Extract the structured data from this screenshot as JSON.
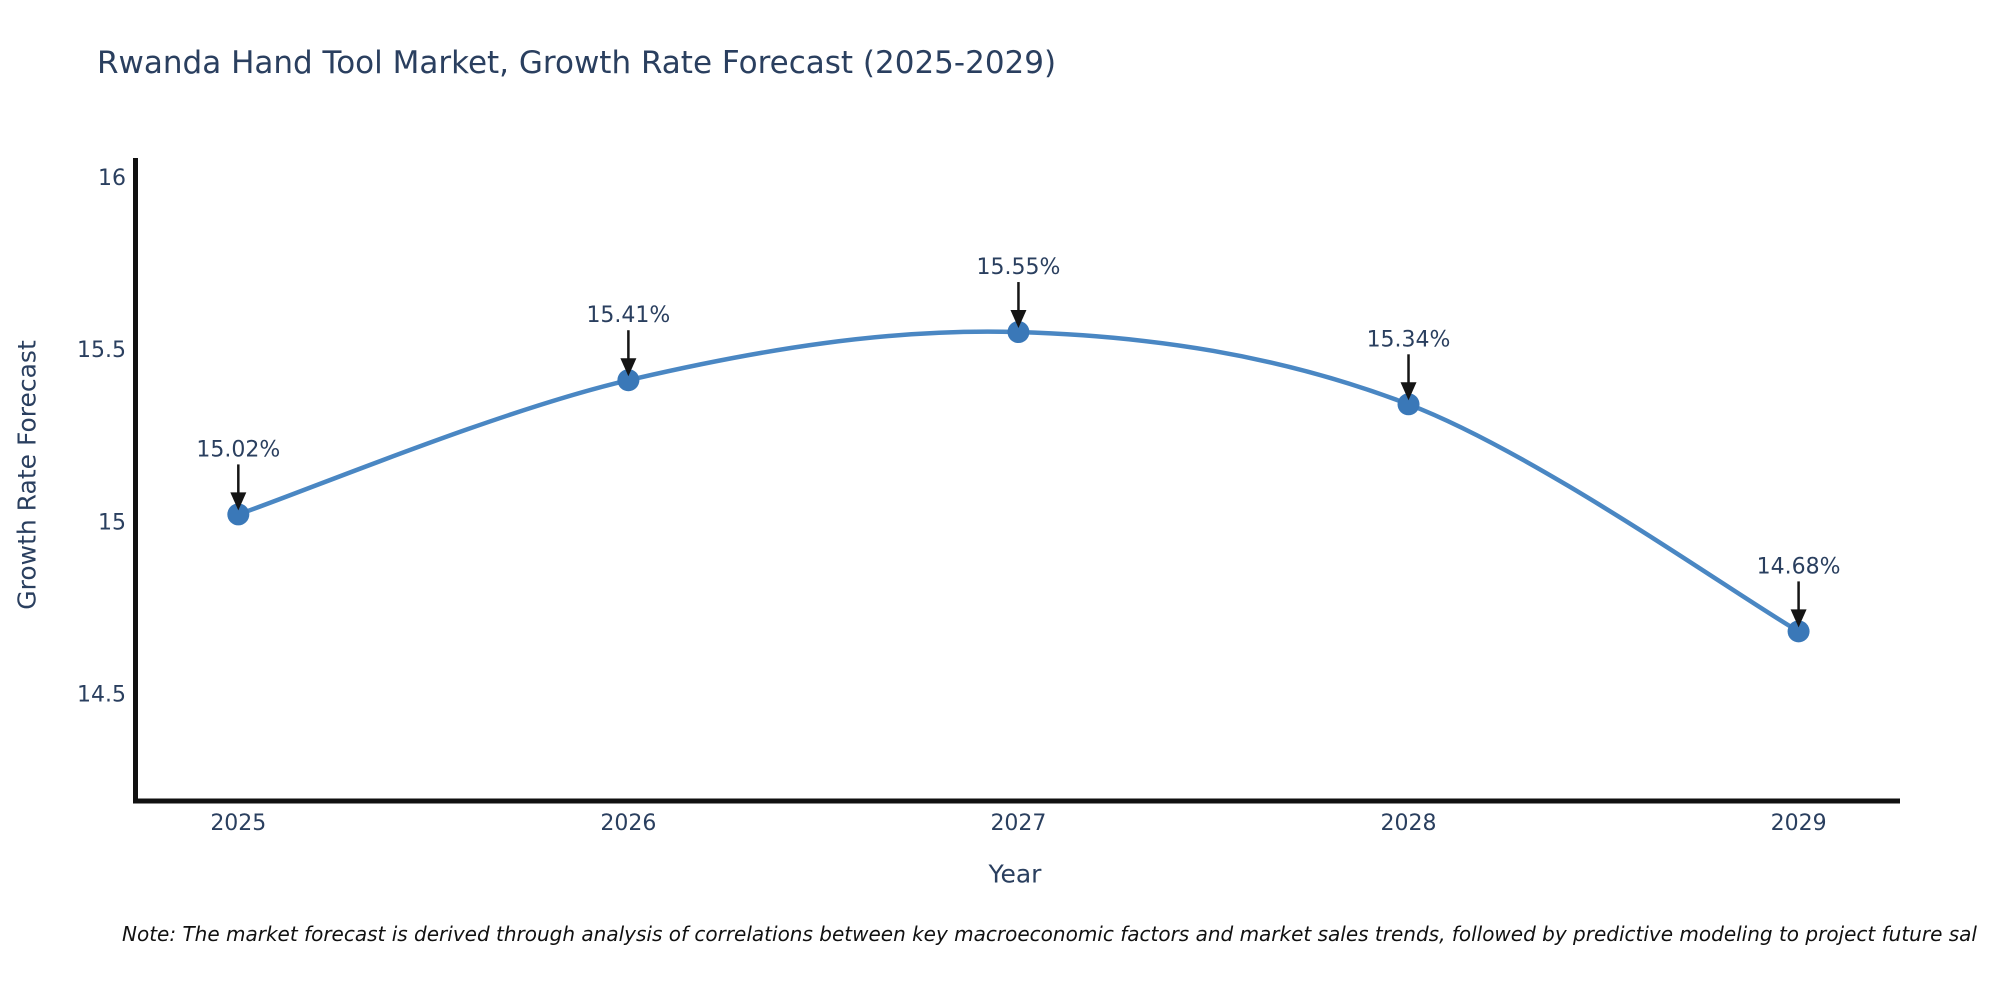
{
  "figure": {
    "title": "Rwanda Hand Tool Market, Growth Rate Forecast (2025-2029)",
    "note": "Note: The market forecast is derived through analysis of correlations between key macroeconomic factors and market sales trends, followed by predictive modeling to project future sal"
  },
  "chart_data": {
    "type": "line",
    "title": "Rwanda Hand Tool Market, Growth Rate Forecast (2025-2029)",
    "xlabel": "Year",
    "ylabel": "Growth Rate Forecast",
    "x": [
      2025,
      2026,
      2027,
      2028,
      2029
    ],
    "series": [
      {
        "name": "Growth Rate Forecast",
        "values": [
          15.02,
          15.41,
          15.55,
          15.34,
          14.68
        ],
        "point_labels": [
          "15.02%",
          "15.41%",
          "15.55%",
          "15.34%",
          "14.68%"
        ]
      }
    ],
    "line_shape": "spline",
    "markers": true,
    "grid": false,
    "legend_position": "none",
    "xticks": [
      2025,
      2026,
      2027,
      2028,
      2029
    ],
    "xtick_labels": [
      "2025",
      "2026",
      "2027",
      "2028",
      "2029"
    ],
    "yticks": [
      14.5,
      15,
      15.5,
      16
    ],
    "ytick_labels": [
      "14.5",
      "15",
      "15.5",
      "16"
    ],
    "xlim": [
      2024.73,
      2029.26
    ],
    "ylim": [
      14.19,
      16.05
    ],
    "colors": {
      "line": "#4a87c3",
      "marker": "#3a78b8",
      "axis": "#111111",
      "tick_text": "#2a3f5f",
      "annotation_text": "#2a3f5f",
      "annotation_arrow": "#151515",
      "background": "#ffffff"
    }
  }
}
